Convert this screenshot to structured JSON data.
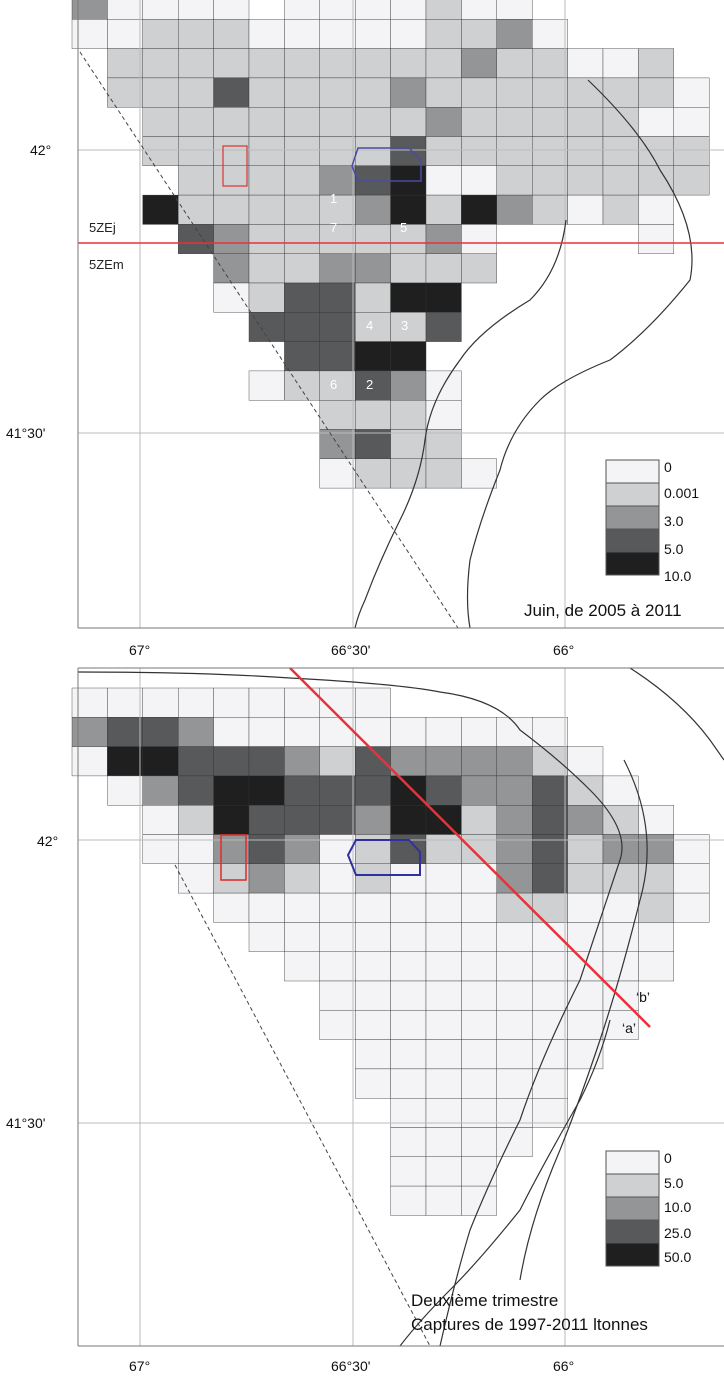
{
  "maps": [
    {
      "id": "top",
      "caption": "Juin, de 2005 à 2011",
      "lat_labels": [
        "42°",
        "41°30'"
      ],
      "lon_labels": [
        "67°",
        "66°30'",
        "66°"
      ],
      "zone_labels": [
        "5ZEj",
        "5ZEm"
      ],
      "legend": [
        "0",
        "0.001",
        "3.0",
        "5.0",
        "10.0"
      ],
      "legend_colors": [
        "#f4f4f6",
        "#cfd0d2",
        "#949597",
        "#58595b",
        "#1f1f1f"
      ],
      "cell_labels": [
        "1",
        "7",
        "5",
        "4",
        "3",
        "6",
        "2"
      ]
    },
    {
      "id": "bottom",
      "caption_line1": "Deuxième trimestre",
      "caption_line2": "Captures de 1997-2011 ltonnes",
      "lat_labels": [
        "42°",
        "41°30'"
      ],
      "lon_labels": [
        "67°",
        "66°30'",
        "66°"
      ],
      "line_labels": [
        "‘b’",
        "‘a’"
      ],
      "legend": [
        "0",
        "5.0",
        "10.0",
        "25.0",
        "50.0"
      ],
      "legend_colors": [
        "#f4f4f6",
        "#cfd0d2",
        "#949597",
        "#58595b",
        "#1f1f1f"
      ]
    }
  ]
}
